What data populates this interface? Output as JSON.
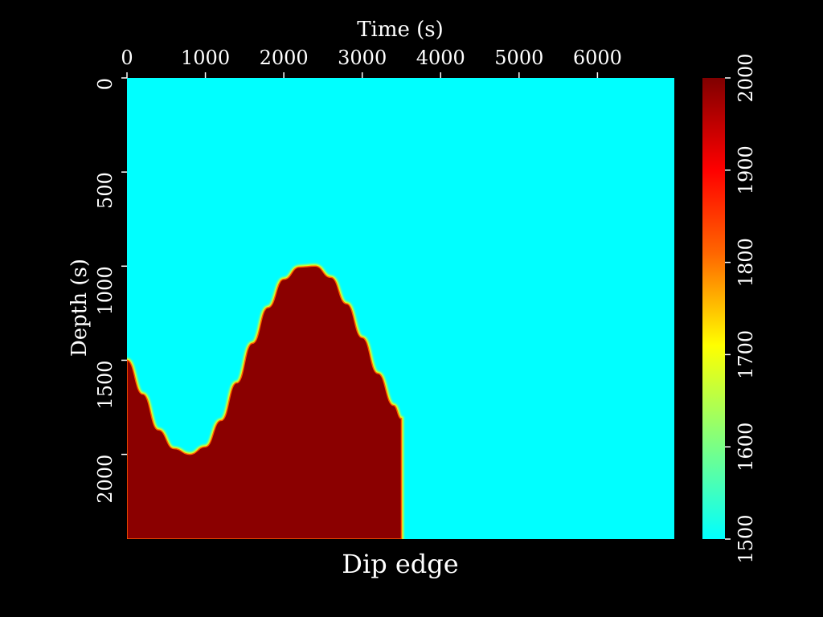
{
  "chart_data": {
    "type": "heatmap",
    "title": "Dip edge",
    "xlabel": "Time (s)",
    "ylabel": "Depth (s)",
    "x_axis_position": "top",
    "xlim": [
      0,
      6980
    ],
    "ylim": [
      2450,
      0
    ],
    "x_ticks": [
      0,
      1000,
      2000,
      3000,
      4000,
      5000,
      6000
    ],
    "y_ticks": [
      0,
      500,
      1000,
      1500,
      2000
    ],
    "colorbar": {
      "range": [
        1500,
        2000
      ],
      "ticks": [
        1500,
        1600,
        1700,
        1800,
        1900,
        2000
      ],
      "colormap": [
        "#00ffff",
        "#ffff00",
        "#ff6600",
        "#ff0000",
        "#800000"
      ]
    },
    "background_value": 1500,
    "region_value": 2000,
    "colors": {
      "low": "#00ffff",
      "high": "#8b0000",
      "mid": "#ffff00"
    },
    "interface": {
      "description_points_x": [
        0,
        200,
        400,
        600,
        800,
        1000,
        1200,
        1400,
        1600,
        1800,
        2000,
        2200,
        2400,
        2600,
        2800,
        3000,
        3200,
        3400,
        3500
      ],
      "depth": [
        1500,
        1680,
        1870,
        1970,
        2000,
        1960,
        1820,
        1620,
        1410,
        1220,
        1070,
        1005,
        1000,
        1060,
        1200,
        1380,
        1570,
        1740,
        1810
      ]
    },
    "region_right_edge_x": 3500
  }
}
